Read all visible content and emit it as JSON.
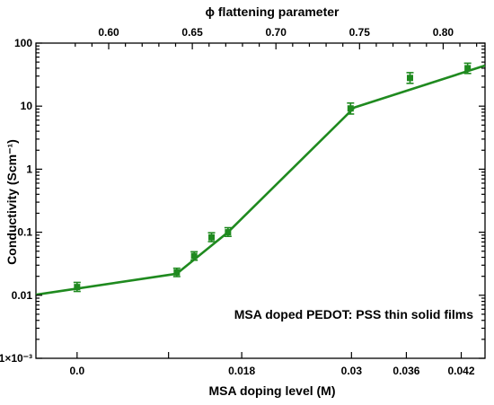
{
  "colors": {
    "series": "#1f8a1f",
    "axis": "#000000"
  },
  "chart_data": {
    "type": "scatter",
    "title": "",
    "xlabel": "MSA doping level (M)",
    "ylabel": "Conductivity (Scm⁻¹)",
    "x2label": "ϕ flattening parameter",
    "annotation": "MSA doped PEDOT: PSS thin solid films",
    "yscale": "log",
    "xlim": [
      -0.0045,
      0.0446
    ],
    "ylim": [
      0.001,
      100
    ],
    "x_ticks": [
      {
        "value": 0.0,
        "label": "0.0"
      },
      {
        "value": 0.018,
        "label": "0.018"
      },
      {
        "value": 0.03,
        "label": "0.03"
      },
      {
        "value": 0.036,
        "label": "0.036"
      },
      {
        "value": 0.042,
        "label": "0.042"
      }
    ],
    "x_ticks_positions": [
      0.0,
      0.01,
      0.018,
      0.03,
      0.036,
      0.042
    ],
    "y_ticks": [
      {
        "value": 0.001,
        "label": "1×10⁻³"
      },
      {
        "value": 0.01,
        "label": "0.01"
      },
      {
        "value": 0.1,
        "label": "0.1"
      },
      {
        "value": 1,
        "label": "1"
      },
      {
        "value": 10,
        "label": "10"
      },
      {
        "value": 100,
        "label": "100"
      }
    ],
    "x2_ticks": [
      {
        "value": 0.6,
        "label": "0.60"
      },
      {
        "value": 0.65,
        "label": "0.65"
      },
      {
        "value": 0.7,
        "label": "0.70"
      },
      {
        "value": 0.75,
        "label": "0.75"
      },
      {
        "value": 0.8,
        "label": "0.80"
      }
    ],
    "x2_mapping": {
      "phi_at_x_0": 0.5811,
      "phi_at_x_0.042": 0.8108
    },
    "grid": false,
    "legend": "none",
    "series": [
      {
        "points": [
          {
            "x": 0.0,
            "y": 0.0135,
            "yerr_low": 0.0115,
            "yerr_high": 0.016
          },
          {
            "x": 0.0109,
            "y": 0.023,
            "yerr_low": 0.0198,
            "yerr_high": 0.0268
          },
          {
            "x": 0.0128,
            "y": 0.042,
            "yerr_low": 0.036,
            "yerr_high": 0.049
          },
          {
            "x": 0.0147,
            "y": 0.083,
            "yerr_low": 0.071,
            "yerr_high": 0.098
          },
          {
            "x": 0.0165,
            "y": 0.1,
            "yerr_low": 0.086,
            "yerr_high": 0.118
          },
          {
            "x": 0.0299,
            "y": 9.2,
            "yerr_low": 7.5,
            "yerr_high": 11.2
          },
          {
            "x": 0.0364,
            "y": 28,
            "yerr_low": 23,
            "yerr_high": 34
          },
          {
            "x": 0.0427,
            "y": 40,
            "yerr_low": 33,
            "yerr_high": 48
          }
        ],
        "fit_line": [
          {
            "x": -0.0045,
            "y": 0.0102
          },
          {
            "x": 0.0109,
            "y": 0.022
          },
          {
            "x": 0.0165,
            "y": 0.1
          },
          {
            "x": 0.0303,
            "y": 9.5
          },
          {
            "x": 0.0446,
            "y": 44
          }
        ]
      }
    ]
  }
}
